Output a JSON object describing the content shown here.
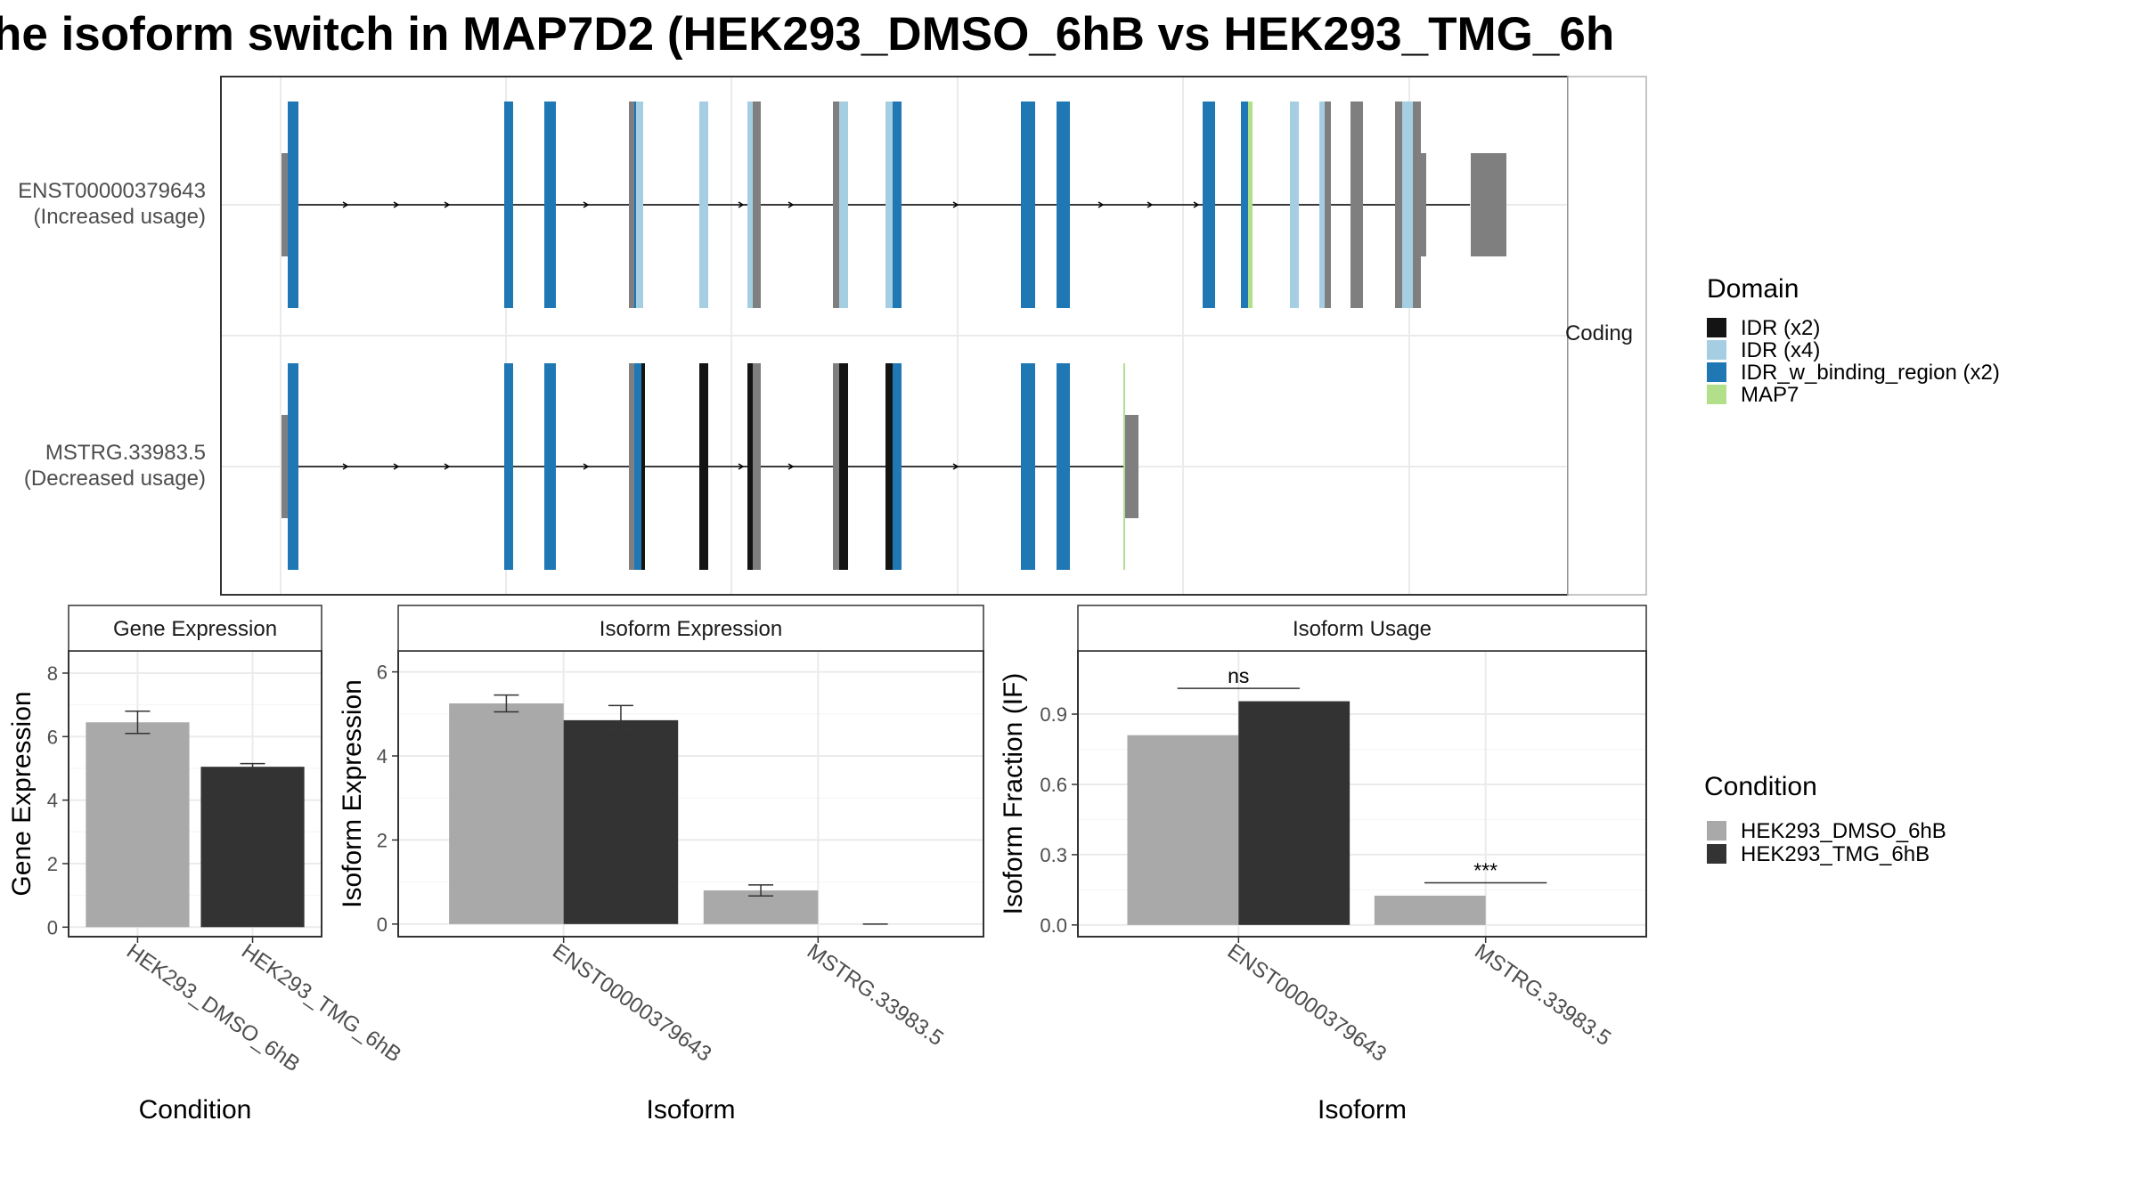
{
  "title": "he isoform switch in MAP7D2 (HEK293_DMSO_6hB vs HEK293_TMG_6h",
  "colors": {
    "IDR (x2)": "#141414",
    "IDR (x4)": "#a6cee3",
    "IDR_w_binding_region (x2)": "#1f78b4",
    "MAP7": "#b2df8a",
    "utr": "#7f7f7f",
    "HEK293_DMSO_6hB": "#a9a9a9",
    "HEK293_TMG_6hB": "#333333"
  },
  "structure": {
    "strip_label": "Coding",
    "transcripts": [
      {
        "name": "ENST00000379643",
        "note": "(Increased usage)"
      },
      {
        "name": "MSTRG.33983.5",
        "note": "(Decreased usage)"
      }
    ]
  },
  "legends": {
    "domain": {
      "title": "Domain",
      "items": [
        "IDR (x2)",
        "IDR (x4)",
        "IDR_w_binding_region (x2)",
        "MAP7"
      ]
    },
    "condition": {
      "title": "Condition",
      "items": [
        "HEK293_DMSO_6hB",
        "HEK293_TMG_6hB"
      ]
    }
  },
  "chart_data": [
    {
      "type": "bar",
      "title": "Gene Expression",
      "xlabel": "Condition",
      "ylabel": "Gene Expression",
      "categories": [
        "HEK293_DMSO_6hB",
        "HEK293_TMG_6hB"
      ],
      "values": [
        6.45,
        5.05
      ],
      "error": [
        [
          6.1,
          6.8
        ],
        [
          4.95,
          5.15
        ]
      ],
      "ylim": [
        -0.3,
        8.7
      ],
      "yticks": [
        0,
        2,
        4,
        6,
        8
      ]
    },
    {
      "type": "bar",
      "title": "Isoform Expression",
      "xlabel": "Isoform",
      "ylabel": "Isoform Expression",
      "categories": [
        "ENST00000379643",
        "MSTRG.33983.5"
      ],
      "series": [
        {
          "name": "HEK293_DMSO_6hB",
          "values": [
            5.25,
            0.8
          ],
          "error": [
            [
              5.05,
              5.45
            ],
            [
              0.67,
              0.93
            ]
          ]
        },
        {
          "name": "HEK293_TMG_6hB",
          "values": [
            4.85,
            0.0
          ],
          "error": [
            [
              4.5,
              5.2
            ],
            [
              0.0,
              0.0
            ]
          ]
        }
      ],
      "ylim": [
        -0.3,
        6.5
      ],
      "yticks": [
        0,
        2,
        4,
        6
      ]
    },
    {
      "type": "bar",
      "title": "Isoform Usage",
      "xlabel": "Isoform",
      "ylabel": "Isoform Fraction (IF)",
      "categories": [
        "ENST00000379643",
        "MSTRG.33983.5"
      ],
      "series": [
        {
          "name": "HEK293_DMSO_6hB",
          "values": [
            0.81,
            0.125
          ]
        },
        {
          "name": "HEK293_TMG_6hB",
          "values": [
            0.955,
            0.0
          ]
        }
      ],
      "significance": [
        "ns",
        "***"
      ],
      "ylim": [
        -0.05,
        1.17
      ],
      "yticks": [
        0.0,
        0.3,
        0.6,
        0.9
      ]
    }
  ]
}
